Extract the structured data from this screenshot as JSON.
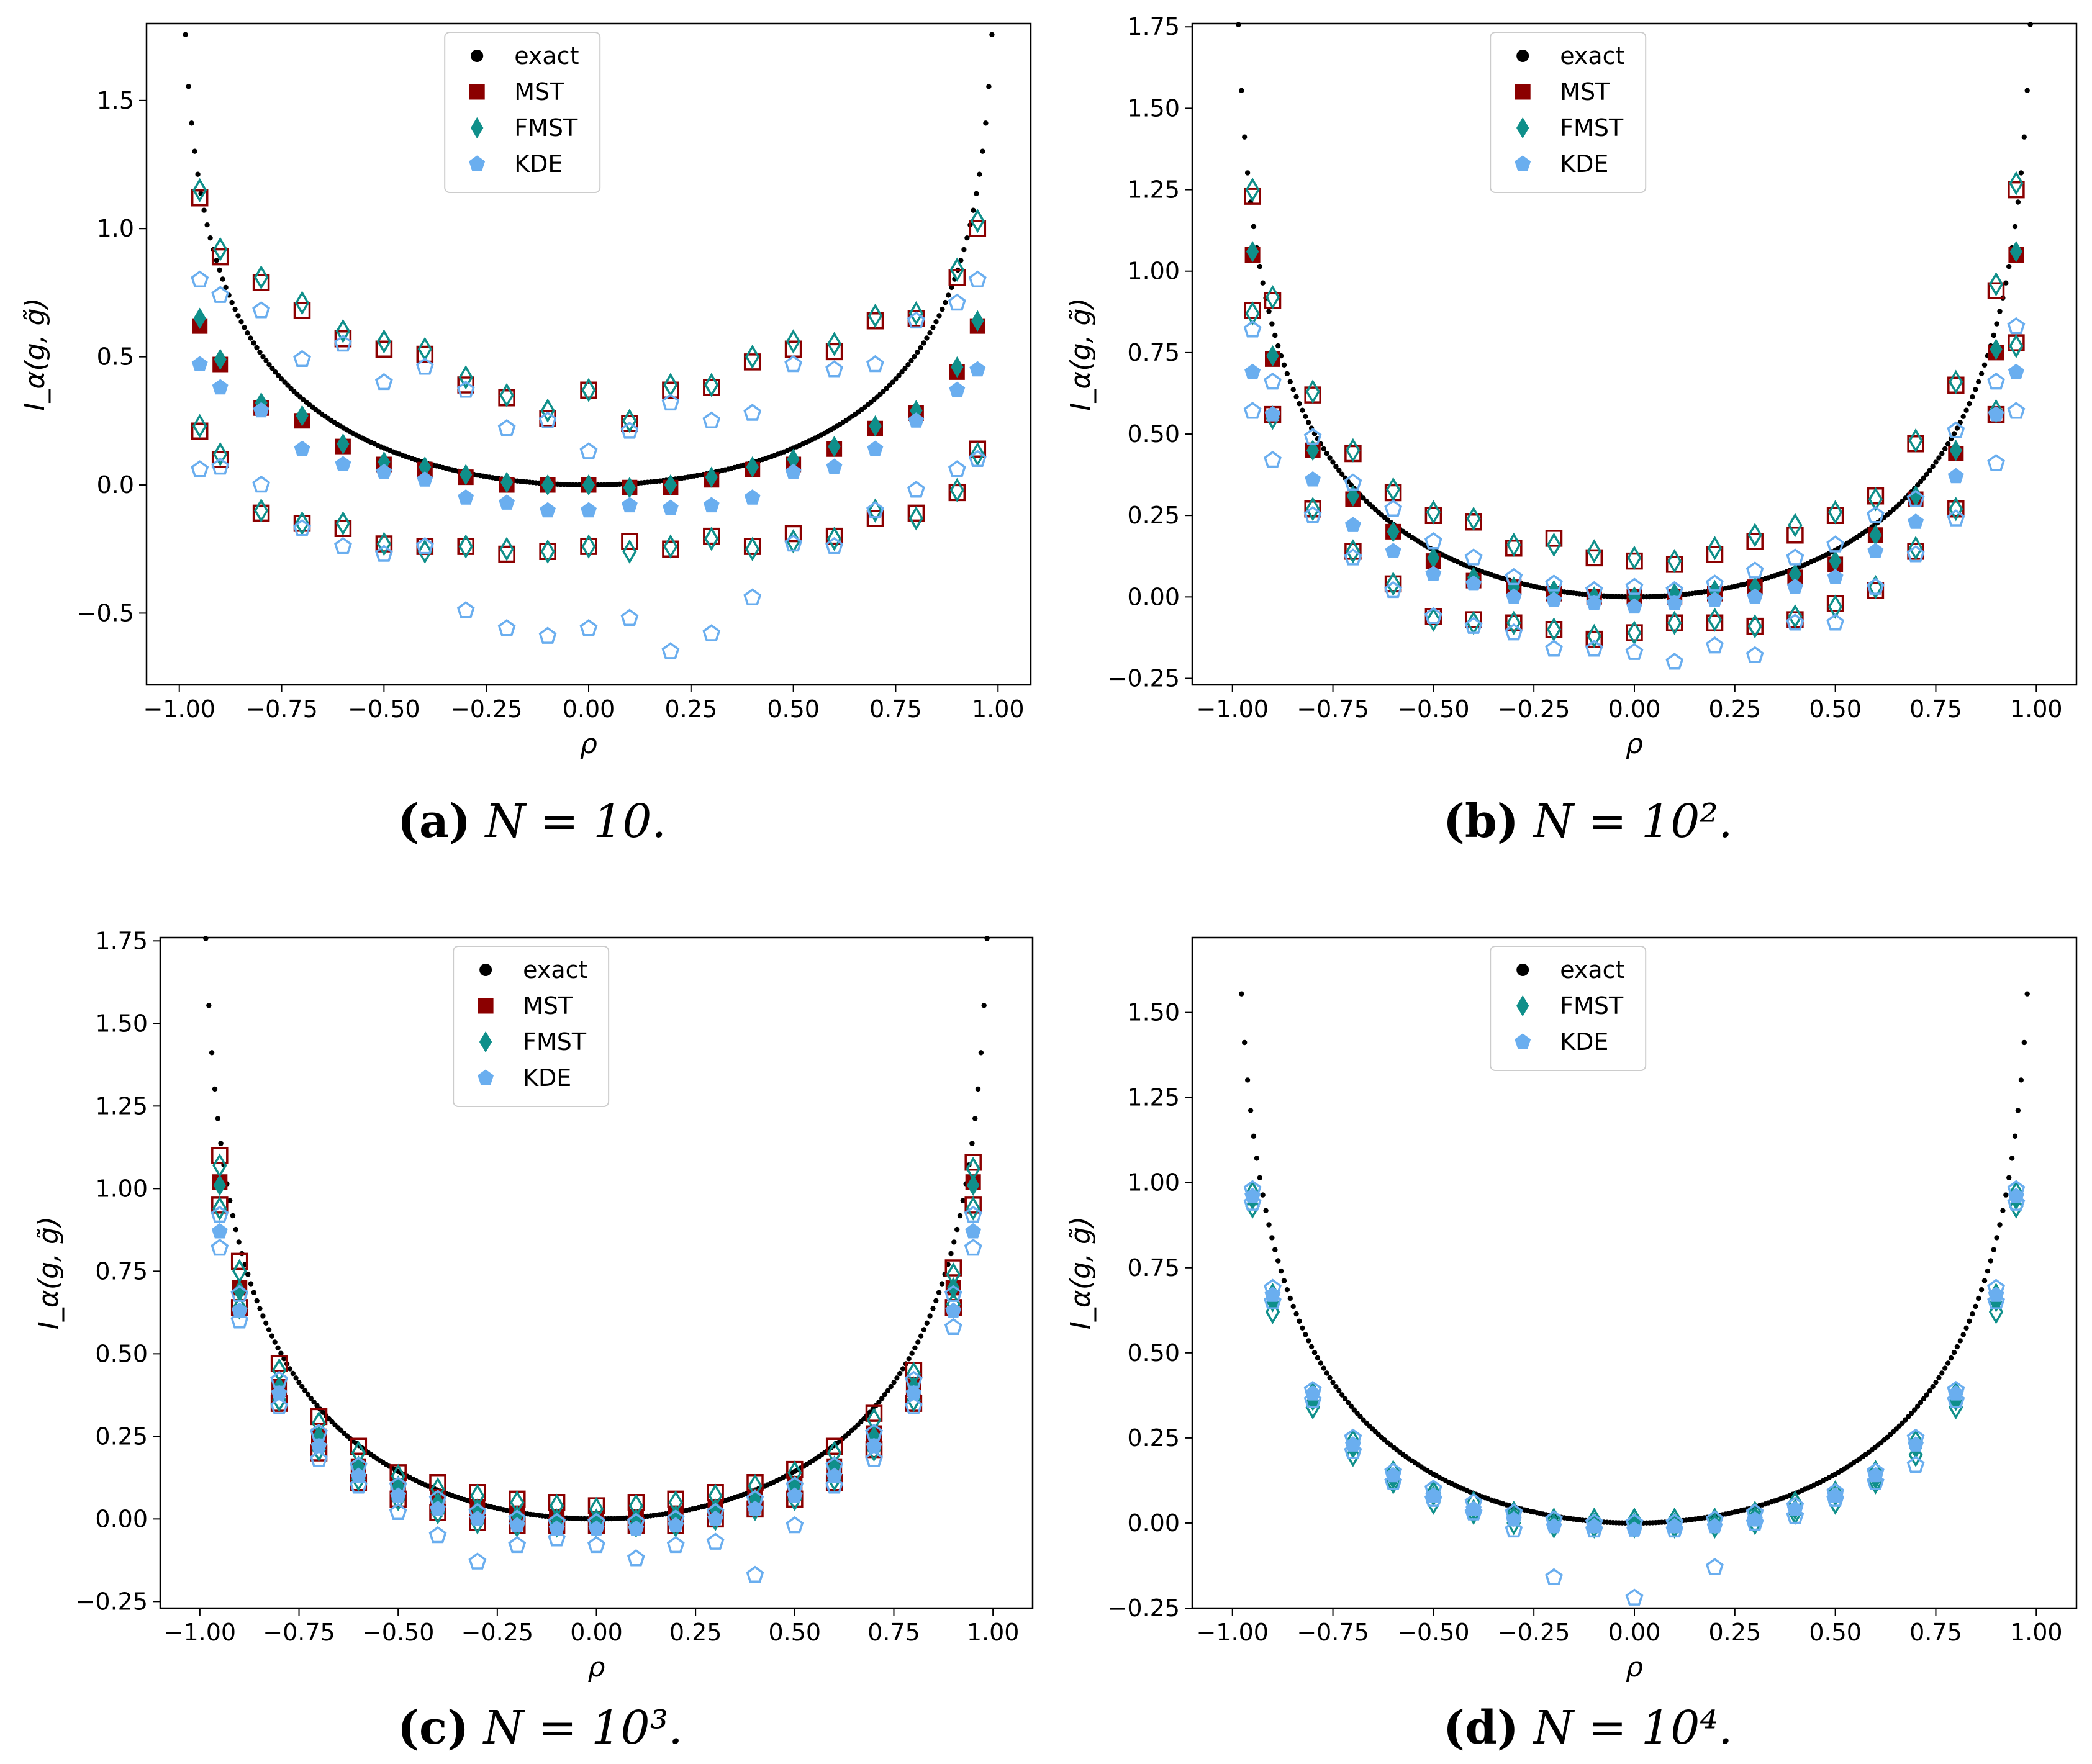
{
  "colors": {
    "exact": "#000000",
    "mst": "#8b0000",
    "fmst": "#0f8f8a",
    "kde": "#6aaeef"
  },
  "chart_data": [
    {
      "panel": "a",
      "type": "scatter",
      "caption_letter": "(a)",
      "caption_eq": "N = 10.",
      "xlabel": "ρ",
      "ylabel": "I_α(g, g̃)",
      "xlim": [
        -1.08,
        1.08
      ],
      "ylim": [
        -0.78,
        1.8
      ],
      "xticks": [
        -1.0,
        -0.75,
        -0.5,
        -0.25,
        0.0,
        0.25,
        0.5,
        0.75,
        1.0
      ],
      "xtick_labels": [
        "−1.00",
        "−0.75",
        "−0.50",
        "−0.25",
        "0.00",
        "0.25",
        "0.50",
        "0.75",
        "1.00"
      ],
      "yticks": [
        -0.5,
        0.0,
        0.5,
        1.0,
        1.5
      ],
      "ytick_labels": [
        "−0.5",
        "0.0",
        "0.5",
        "1.0",
        "1.5"
      ],
      "legend": [
        "exact",
        "MST",
        "FMST",
        "KDE"
      ],
      "legend_position": "top-center",
      "rho": [
        -0.95,
        -0.9,
        -0.8,
        -0.7,
        -0.6,
        -0.5,
        -0.4,
        -0.3,
        -0.2,
        -0.1,
        0.0,
        0.1,
        0.2,
        0.3,
        0.4,
        0.5,
        0.6,
        0.7,
        0.8,
        0.9,
        0.95
      ],
      "series": [
        {
          "name": "MST",
          "mean": [
            0.62,
            0.47,
            0.3,
            0.25,
            0.15,
            0.08,
            0.06,
            0.03,
            0.0,
            0.0,
            0.0,
            -0.01,
            -0.01,
            0.02,
            0.06,
            0.08,
            0.14,
            0.22,
            0.28,
            0.44,
            0.62
          ],
          "upper": [
            1.12,
            0.89,
            0.79,
            0.68,
            0.57,
            0.53,
            0.51,
            0.39,
            0.34,
            0.26,
            0.37,
            0.24,
            0.37,
            0.38,
            0.48,
            0.53,
            0.52,
            0.64,
            0.65,
            0.81,
            1.0
          ],
          "lower": [
            0.21,
            0.1,
            -0.11,
            -0.15,
            -0.17,
            -0.23,
            -0.24,
            -0.24,
            -0.27,
            -0.26,
            -0.24,
            -0.22,
            -0.25,
            -0.2,
            -0.24,
            -0.19,
            -0.2,
            -0.13,
            -0.11,
            -0.03,
            0.14
          ]
        },
        {
          "name": "FMST",
          "mean": [
            0.65,
            0.49,
            0.32,
            0.27,
            0.16,
            0.09,
            0.07,
            0.04,
            0.01,
            0.0,
            0.0,
            -0.01,
            0.0,
            0.03,
            0.07,
            0.1,
            0.15,
            0.23,
            0.29,
            0.46,
            0.64
          ],
          "upper": [
            1.15,
            0.92,
            0.81,
            0.71,
            0.6,
            0.56,
            0.53,
            0.42,
            0.35,
            0.29,
            0.37,
            0.25,
            0.39,
            0.39,
            0.5,
            0.56,
            0.55,
            0.66,
            0.67,
            0.84,
            1.03
          ],
          "lower": [
            0.23,
            0.12,
            -0.1,
            -0.15,
            -0.15,
            -0.23,
            -0.26,
            -0.24,
            -0.25,
            -0.26,
            -0.24,
            -0.26,
            -0.24,
            -0.21,
            -0.25,
            -0.22,
            -0.21,
            -0.1,
            -0.13,
            -0.02,
            0.12
          ]
        },
        {
          "name": "KDE",
          "mean": [
            0.47,
            0.38,
            0.29,
            0.14,
            0.08,
            0.05,
            0.02,
            -0.05,
            -0.07,
            -0.1,
            -0.1,
            -0.08,
            -0.09,
            -0.08,
            -0.05,
            0.05,
            0.07,
            0.14,
            0.25,
            0.37,
            0.45
          ],
          "upper": [
            0.8,
            0.74,
            0.68,
            0.49,
            0.55,
            0.4,
            0.46,
            0.37,
            0.22,
            0.25,
            0.13,
            0.21,
            0.32,
            0.25,
            0.28,
            0.47,
            0.45,
            0.47,
            0.64,
            0.71,
            0.8
          ],
          "lower": [
            0.06,
            0.07,
            0.0,
            -0.17,
            -0.24,
            -0.27,
            -0.24,
            -0.49,
            -0.56,
            -0.59,
            -0.56,
            -0.52,
            -0.65,
            -0.58,
            -0.44,
            -0.23,
            -0.24,
            -0.1,
            -0.02,
            0.06,
            0.1
          ]
        }
      ]
    },
    {
      "panel": "b",
      "type": "scatter",
      "caption_letter": "(b)",
      "caption_eq": "N = 10².",
      "xlabel": "ρ",
      "ylabel": "I_α(g, g̃)",
      "xlim": [
        -1.1,
        1.1
      ],
      "ylim": [
        -0.27,
        1.76
      ],
      "xticks": [
        -1.0,
        -0.75,
        -0.5,
        -0.25,
        0.0,
        0.25,
        0.5,
        0.75,
        1.0
      ],
      "xtick_labels": [
        "−1.00",
        "−0.75",
        "−0.50",
        "−0.25",
        "0.00",
        "0.25",
        "0.50",
        "0.75",
        "1.00"
      ],
      "yticks": [
        -0.25,
        0.0,
        0.25,
        0.5,
        0.75,
        1.0,
        1.25,
        1.5,
        1.75
      ],
      "ytick_labels": [
        "−0.25",
        "0.00",
        "0.25",
        "0.50",
        "0.75",
        "1.00",
        "1.25",
        "1.50",
        "1.75"
      ],
      "legend": [
        "exact",
        "MST",
        "FMST",
        "KDE"
      ],
      "legend_position": "top-center",
      "rho": [
        -0.95,
        -0.9,
        -0.8,
        -0.7,
        -0.6,
        -0.5,
        -0.4,
        -0.3,
        -0.2,
        -0.1,
        0.0,
        0.1,
        0.2,
        0.3,
        0.4,
        0.5,
        0.6,
        0.7,
        0.8,
        0.9,
        0.95
      ],
      "series": [
        {
          "name": "MST",
          "mean": [
            1.05,
            0.73,
            0.45,
            0.3,
            0.2,
            0.11,
            0.05,
            0.03,
            0.01,
            0.0,
            0.0,
            0.0,
            0.01,
            0.03,
            0.06,
            0.1,
            0.19,
            0.3,
            0.44,
            0.75,
            1.05
          ],
          "upper": [
            1.23,
            0.91,
            0.62,
            0.44,
            0.32,
            0.25,
            0.23,
            0.15,
            0.18,
            0.12,
            0.11,
            0.1,
            0.13,
            0.17,
            0.19,
            0.25,
            0.31,
            0.47,
            0.65,
            0.94,
            1.25
          ],
          "lower": [
            0.88,
            0.56,
            0.27,
            0.14,
            0.04,
            -0.06,
            -0.07,
            -0.08,
            -0.1,
            -0.13,
            -0.11,
            -0.08,
            -0.08,
            -0.09,
            -0.07,
            -0.02,
            0.02,
            0.14,
            0.27,
            0.56,
            0.78
          ]
        },
        {
          "name": "FMST",
          "mean": [
            1.06,
            0.74,
            0.45,
            0.31,
            0.2,
            0.12,
            0.06,
            0.03,
            0.02,
            0.0,
            0.0,
            0.01,
            0.02,
            0.03,
            0.07,
            0.11,
            0.19,
            0.31,
            0.45,
            0.76,
            1.06
          ],
          "upper": [
            1.25,
            0.92,
            0.63,
            0.45,
            0.33,
            0.26,
            0.24,
            0.16,
            0.16,
            0.14,
            0.12,
            0.11,
            0.15,
            0.19,
            0.22,
            0.26,
            0.3,
            0.48,
            0.66,
            0.96,
            1.27
          ],
          "lower": [
            0.87,
            0.55,
            0.27,
            0.14,
            0.04,
            -0.07,
            -0.08,
            -0.08,
            -0.1,
            -0.12,
            -0.11,
            -0.08,
            -0.07,
            -0.09,
            -0.06,
            -0.03,
            0.03,
            0.15,
            0.27,
            0.57,
            0.77
          ]
        },
        {
          "name": "KDE",
          "mean": [
            0.69,
            0.56,
            0.36,
            0.22,
            0.14,
            0.07,
            0.04,
            0.0,
            -0.01,
            -0.02,
            -0.03,
            -0.02,
            -0.01,
            0.0,
            0.03,
            0.06,
            0.14,
            0.23,
            0.37,
            0.56,
            0.69
          ],
          "upper": [
            0.82,
            0.66,
            0.49,
            0.35,
            0.27,
            0.17,
            0.12,
            0.06,
            0.04,
            0.02,
            0.03,
            0.02,
            0.04,
            0.08,
            0.12,
            0.16,
            0.25,
            0.3,
            0.51,
            0.66,
            0.83
          ],
          "lower": [
            0.57,
            0.42,
            0.25,
            0.12,
            0.02,
            -0.06,
            -0.09,
            -0.11,
            -0.16,
            -0.16,
            -0.17,
            -0.2,
            -0.15,
            -0.18,
            -0.08,
            -0.08,
            0.03,
            0.13,
            0.24,
            0.41,
            0.57
          ]
        }
      ]
    },
    {
      "panel": "c",
      "type": "scatter",
      "caption_letter": "(c)",
      "caption_eq": "N = 10³.",
      "xlabel": "ρ",
      "ylabel": "I_α(g, g̃)",
      "xlim": [
        -1.1,
        1.1
      ],
      "ylim": [
        -0.27,
        1.76
      ],
      "xticks": [
        -1.0,
        -0.75,
        -0.5,
        -0.25,
        0.0,
        0.25,
        0.5,
        0.75,
        1.0
      ],
      "xtick_labels": [
        "−1.00",
        "−0.75",
        "−0.50",
        "−0.25",
        "0.00",
        "0.25",
        "0.50",
        "0.75",
        "1.00"
      ],
      "yticks": [
        -0.25,
        0.0,
        0.25,
        0.5,
        0.75,
        1.0,
        1.25,
        1.5,
        1.75
      ],
      "ytick_labels": [
        "−0.25",
        "0.00",
        "0.25",
        "0.50",
        "0.75",
        "1.00",
        "1.25",
        "1.50",
        "1.75"
      ],
      "legend": [
        "exact",
        "MST",
        "FMST",
        "KDE"
      ],
      "legend_position": "top-center",
      "rho": [
        -0.95,
        -0.9,
        -0.8,
        -0.7,
        -0.6,
        -0.5,
        -0.4,
        -0.3,
        -0.2,
        -0.1,
        0.0,
        0.1,
        0.2,
        0.3,
        0.4,
        0.5,
        0.6,
        0.7,
        0.8,
        0.9,
        0.95
      ],
      "series": [
        {
          "name": "MST",
          "mean": [
            1.02,
            0.7,
            0.4,
            0.25,
            0.16,
            0.1,
            0.06,
            0.03,
            0.01,
            0.0,
            0.0,
            0.0,
            0.01,
            0.03,
            0.06,
            0.1,
            0.16,
            0.26,
            0.4,
            0.7,
            1.02
          ],
          "upper": [
            1.1,
            0.78,
            0.47,
            0.31,
            0.22,
            0.14,
            0.11,
            0.08,
            0.06,
            0.05,
            0.04,
            0.05,
            0.06,
            0.08,
            0.11,
            0.15,
            0.22,
            0.32,
            0.45,
            0.76,
            1.08
          ],
          "lower": [
            0.95,
            0.64,
            0.35,
            0.2,
            0.11,
            0.06,
            0.02,
            -0.01,
            -0.02,
            -0.02,
            -0.02,
            -0.02,
            -0.02,
            0.0,
            0.03,
            0.06,
            0.11,
            0.21,
            0.35,
            0.64,
            0.95
          ]
        },
        {
          "name": "FMST",
          "mean": [
            1.01,
            0.69,
            0.4,
            0.25,
            0.16,
            0.1,
            0.05,
            0.03,
            0.01,
            0.0,
            0.0,
            0.0,
            0.01,
            0.03,
            0.06,
            0.1,
            0.16,
            0.25,
            0.4,
            0.7,
            1.01
          ],
          "upper": [
            1.07,
            0.75,
            0.45,
            0.29,
            0.2,
            0.13,
            0.09,
            0.07,
            0.05,
            0.04,
            0.03,
            0.04,
            0.05,
            0.07,
            0.1,
            0.14,
            0.2,
            0.3,
            0.44,
            0.74,
            1.06
          ],
          "lower": [
            0.94,
            0.64,
            0.36,
            0.21,
            0.12,
            0.06,
            0.02,
            -0.01,
            -0.02,
            -0.02,
            -0.02,
            -0.02,
            -0.02,
            0.0,
            0.03,
            0.06,
            0.12,
            0.21,
            0.36,
            0.65,
            0.94
          ]
        },
        {
          "name": "KDE",
          "mean": [
            0.87,
            0.63,
            0.38,
            0.22,
            0.13,
            0.07,
            0.03,
            0.0,
            -0.02,
            -0.03,
            -0.03,
            -0.03,
            -0.02,
            0.0,
            0.03,
            0.07,
            0.13,
            0.22,
            0.38,
            0.63,
            0.87
          ],
          "upper": [
            0.92,
            0.68,
            0.42,
            0.26,
            0.16,
            0.1,
            0.06,
            0.02,
            0.0,
            -0.01,
            -0.01,
            -0.01,
            0.0,
            0.02,
            0.06,
            0.1,
            0.16,
            0.26,
            0.42,
            0.68,
            0.92
          ],
          "lower": [
            0.82,
            0.6,
            0.34,
            0.18,
            0.1,
            0.02,
            -0.05,
            -0.13,
            -0.08,
            -0.06,
            -0.08,
            -0.12,
            -0.08,
            -0.07,
            -0.17,
            -0.02,
            0.1,
            0.18,
            0.34,
            0.58,
            0.82
          ]
        }
      ]
    },
    {
      "panel": "d",
      "type": "scatter",
      "caption_letter": "(d)",
      "caption_eq": "N = 10⁴.",
      "xlabel": "ρ",
      "ylabel": "I_α(g, g̃)",
      "xlim": [
        -1.1,
        1.1
      ],
      "ylim": [
        -0.25,
        1.72
      ],
      "xticks": [
        -1.0,
        -0.75,
        -0.5,
        -0.25,
        0.0,
        0.25,
        0.5,
        0.75,
        1.0
      ],
      "xtick_labels": [
        "−1.00",
        "−0.75",
        "−0.50",
        "−0.25",
        "0.00",
        "0.25",
        "0.50",
        "0.75",
        "1.00"
      ],
      "yticks": [
        -0.25,
        0.0,
        0.25,
        0.5,
        0.75,
        1.0,
        1.25,
        1.5
      ],
      "ytick_labels": [
        "−0.25",
        "0.00",
        "0.25",
        "0.50",
        "0.75",
        "1.00",
        "1.25",
        "1.50"
      ],
      "legend": [
        "exact",
        "FMST",
        "KDE"
      ],
      "legend_position": "top-center",
      "rho": [
        -0.95,
        -0.9,
        -0.8,
        -0.7,
        -0.6,
        -0.5,
        -0.4,
        -0.3,
        -0.2,
        -0.1,
        0.0,
        0.1,
        0.2,
        0.3,
        0.4,
        0.5,
        0.6,
        0.7,
        0.8,
        0.9,
        0.95
      ],
      "series": [
        {
          "name": "FMST",
          "mean": [
            0.95,
            0.65,
            0.36,
            0.22,
            0.13,
            0.08,
            0.04,
            0.02,
            0.0,
            0.0,
            0.0,
            0.0,
            0.0,
            0.02,
            0.04,
            0.08,
            0.13,
            0.22,
            0.36,
            0.65,
            0.95
          ],
          "upper": [
            0.97,
            0.67,
            0.38,
            0.24,
            0.15,
            0.09,
            0.06,
            0.03,
            0.01,
            0.01,
            0.01,
            0.01,
            0.01,
            0.03,
            0.06,
            0.09,
            0.15,
            0.24,
            0.38,
            0.67,
            0.97
          ],
          "lower": [
            0.93,
            0.62,
            0.34,
            0.2,
            0.12,
            0.06,
            0.03,
            0.0,
            -0.01,
            -0.01,
            -0.01,
            -0.01,
            -0.01,
            0.0,
            0.03,
            0.06,
            0.12,
            0.2,
            0.34,
            0.62,
            0.93
          ]
        },
        {
          "name": "KDE",
          "mean": [
            0.96,
            0.67,
            0.38,
            0.23,
            0.14,
            0.08,
            0.04,
            0.01,
            -0.01,
            -0.01,
            -0.02,
            -0.01,
            -0.01,
            0.01,
            0.04,
            0.08,
            0.14,
            0.23,
            0.38,
            0.67,
            0.96
          ],
          "upper": [
            0.98,
            0.69,
            0.39,
            0.25,
            0.15,
            0.1,
            0.06,
            0.03,
            0.01,
            0.0,
            0.0,
            0.0,
            0.01,
            0.03,
            0.05,
            0.09,
            0.15,
            0.25,
            0.39,
            0.69,
            0.98
          ],
          "lower": [
            0.94,
            0.65,
            0.36,
            0.21,
            0.12,
            0.07,
            0.03,
            -0.02,
            -0.16,
            -0.02,
            -0.22,
            -0.02,
            -0.13,
            0.0,
            0.02,
            0.07,
            0.12,
            0.17,
            0.36,
            0.65,
            0.94
          ]
        }
      ]
    }
  ]
}
